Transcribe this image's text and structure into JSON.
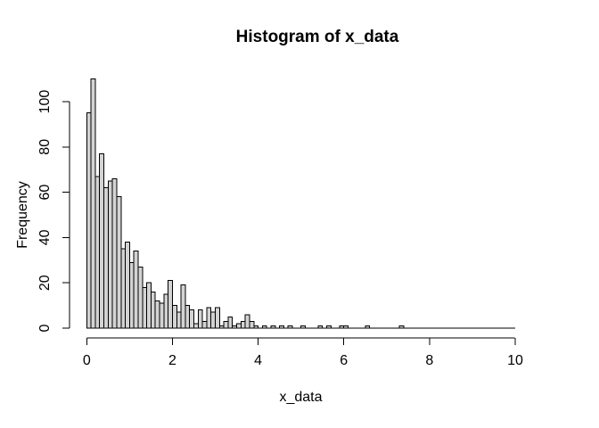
{
  "window": {
    "background": "#ffffff"
  },
  "chart_data": {
    "type": "bar",
    "subtype": "histogram",
    "title": "Histogram of x_data",
    "xlabel": "x_data",
    "ylabel": "Frequency",
    "xlim": [
      0,
      10
    ],
    "ylim": [
      0,
      110
    ],
    "x_ticks": [
      0,
      2,
      4,
      6,
      8,
      10
    ],
    "y_ticks": [
      0,
      20,
      40,
      60,
      80,
      100
    ],
    "grid": false,
    "legend": "none",
    "bar_fill": "#d3d3d3",
    "bar_stroke": "#000000",
    "bin_start": 0,
    "bin_width": 0.1,
    "counts": [
      95,
      110,
      67,
      77,
      62,
      65,
      66,
      58,
      35,
      38,
      29,
      34,
      27,
      18,
      20,
      16,
      12,
      11,
      15,
      21,
      10,
      7,
      19,
      10,
      8,
      2,
      8,
      3,
      9,
      7,
      9,
      1,
      3,
      5,
      1,
      2,
      3,
      6,
      3,
      1,
      0,
      1,
      0,
      1,
      0,
      1,
      0,
      1,
      0,
      0,
      1,
      0,
      0,
      0,
      1,
      0,
      1,
      0,
      0,
      1,
      1,
      0,
      0,
      0,
      0,
      1,
      0,
      0,
      0,
      0,
      0,
      0,
      0,
      1,
      0,
      0,
      0,
      0,
      0,
      0,
      0,
      0,
      0,
      0,
      0,
      0,
      0,
      0,
      0,
      0,
      0,
      0,
      0,
      0,
      0,
      0,
      0,
      0,
      0,
      0
    ]
  }
}
